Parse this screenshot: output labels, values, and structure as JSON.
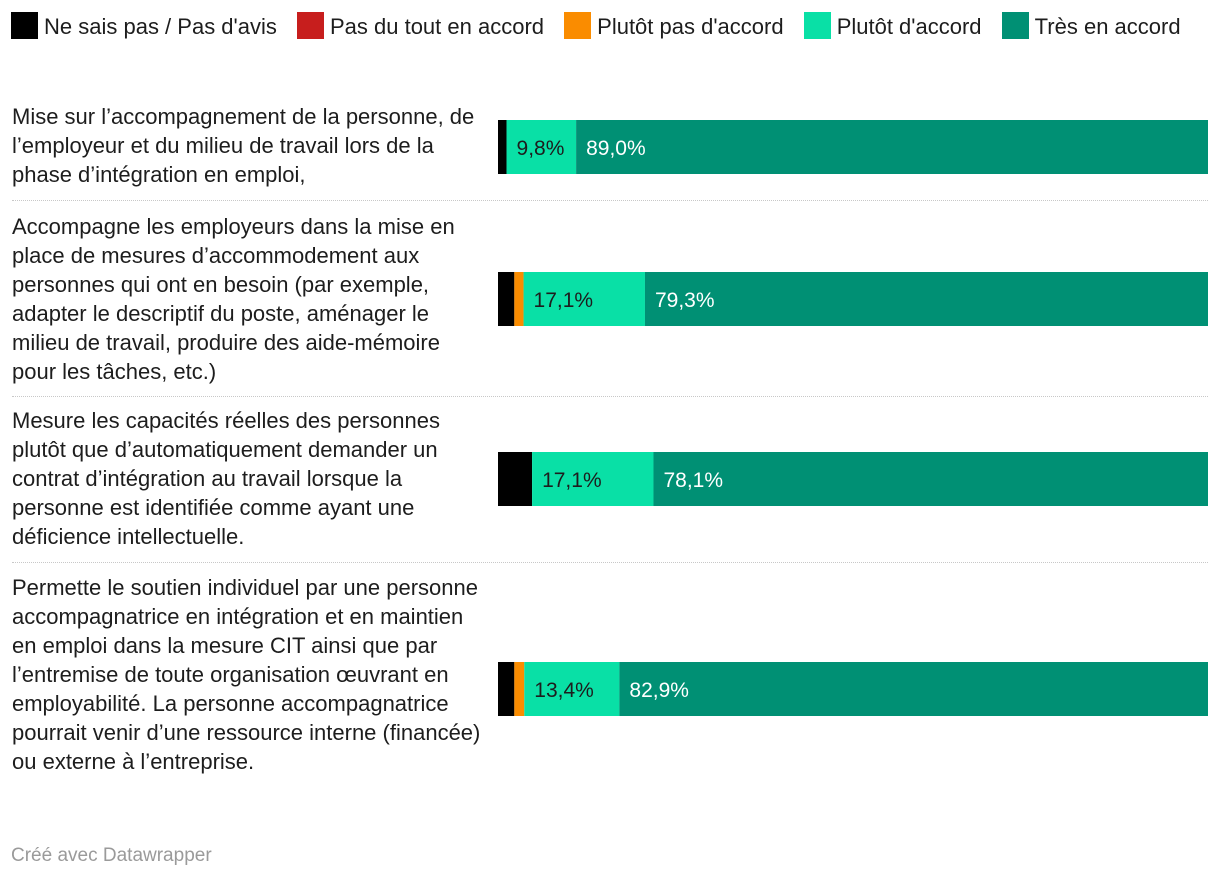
{
  "chart_data": {
    "type": "bar",
    "orientation": "horizontal",
    "stacked": true,
    "legend": [
      {
        "name": "Ne sais pas / Pas d'avis",
        "color": "#000000"
      },
      {
        "name": "Pas du tout en accord",
        "color": "#c71e1d"
      },
      {
        "name": "Plutôt pas d'accord",
        "color": "#fa8c00"
      },
      {
        "name": "Plutôt d'accord",
        "color": "#09e0a6"
      },
      {
        "name": "Très en accord",
        "color": "#009074"
      }
    ],
    "categories": [
      "Mise sur l’accompagnement de la personne, de l’employeur et du milieu de travail lors de la phase d’intégration en emploi,",
      "Accompagne les employeurs dans la mise en place de mesures d’accommodement aux personnes qui ont en besoin (par exemple, adapter le descriptif du poste, aménager le milieu de travail, produire des aide-mémoire pour les tâches, etc.)",
      "Mesure les capacités réelles des personnes plutôt que d’automatiquement demander un contrat d’intégration au travail lorsque la personne est identifiée comme ayant une déficience intellectuelle.",
      "Permette le soutien individuel par une personne accompagnatrice en intégration et en maintien en emploi dans la mesure CIT ainsi que par l’entremise de toute organisation œuvrant en employabilité. La personne accompagnatrice pourrait venir d’une ressource interne (financée) ou externe à l’entreprise."
    ],
    "series": [
      {
        "name": "Ne sais pas / Pas d'avis",
        "values": [
          1.2,
          2.3,
          4.8,
          2.3
        ]
      },
      {
        "name": "Pas du tout en accord",
        "values": [
          0,
          0,
          0,
          0
        ]
      },
      {
        "name": "Plutôt pas d'accord",
        "values": [
          0,
          1.3,
          0,
          1.4
        ]
      },
      {
        "name": "Plutôt d'accord",
        "values": [
          9.8,
          17.1,
          17.1,
          13.4
        ]
      },
      {
        "name": "Très en accord",
        "values": [
          89.0,
          79.3,
          78.1,
          82.9
        ]
      }
    ],
    "data_labels": [
      [
        "",
        "",
        "",
        "9,8%",
        "89,0%"
      ],
      [
        "",
        "",
        "",
        "17,1%",
        "79,3%"
      ],
      [
        "",
        "",
        "",
        "17,1%",
        "78,1%"
      ],
      [
        "",
        "",
        "",
        "13,4%",
        "82,9%"
      ]
    ],
    "xlim": [
      0,
      100
    ]
  },
  "footer": "Créé avec Datawrapper"
}
